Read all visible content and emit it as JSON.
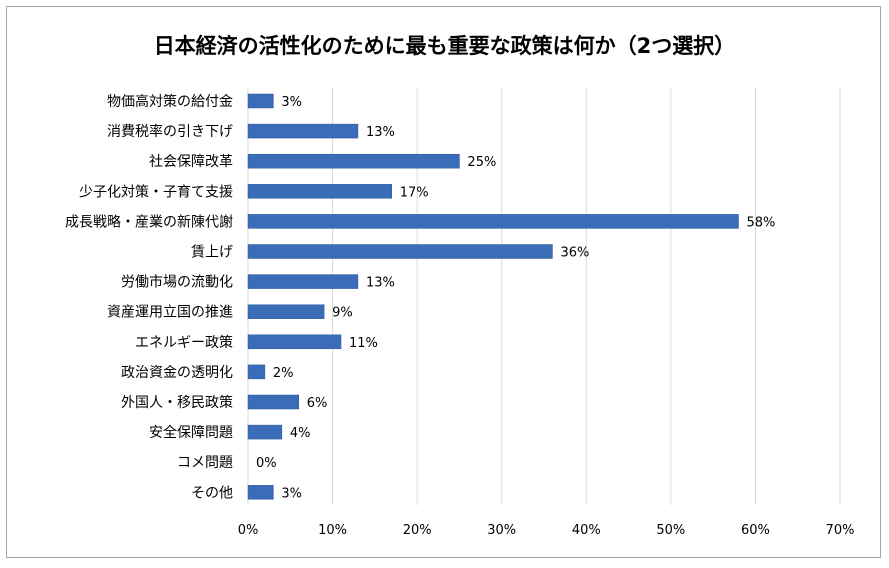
{
  "chart_data": {
    "type": "bar",
    "orientation": "horizontal",
    "title": "日本経済の活性化のために最も重要な政策は何か（2つ選択）",
    "categories": [
      "物価高対策の給付金",
      "消費税率の引き下げ",
      "社会保障改革",
      "少子化対策・子育て支援",
      "成長戦略・産業の新陳代謝",
      "賃上げ",
      "労働市場の流動化",
      "資産運用立国の推進",
      "エネルギー政策",
      "政治資金の透明化",
      "外国人・移民政策",
      "安全保障問題",
      "コメ問題",
      "その他"
    ],
    "values": [
      3,
      13,
      25,
      17,
      58,
      36,
      13,
      9,
      11,
      2,
      6,
      4,
      0,
      3
    ],
    "data_labels": [
      "3%",
      "13%",
      "25%",
      "17%",
      "58%",
      "36%",
      "13%",
      "9%",
      "11%",
      "2%",
      "6%",
      "4%",
      "0%",
      "3%"
    ],
    "x_ticks": [
      "0%",
      "10%",
      "20%",
      "30%",
      "40%",
      "50%",
      "60%",
      "70%"
    ],
    "xlim": [
      0,
      70
    ],
    "grid": "vertical",
    "legend": "none",
    "colors": {
      "bar": "#3a6cb8",
      "bar_edge": "#2f5a9e",
      "grid": "#d9d9d9",
      "frame": "#a6a6a6",
      "text": "#000000"
    }
  }
}
